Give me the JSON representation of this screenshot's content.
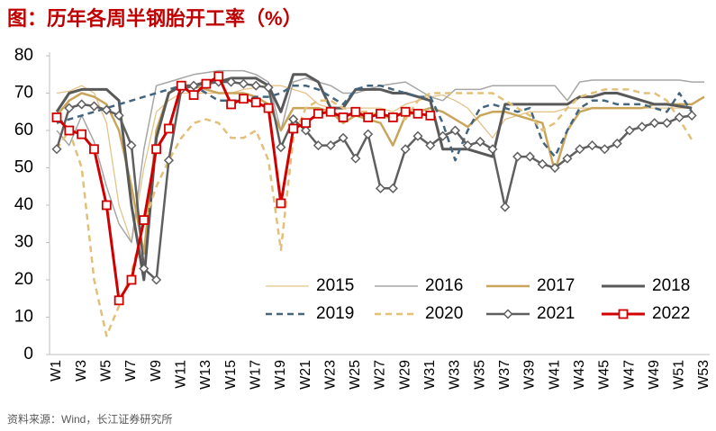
{
  "chart_data": {
    "type": "line",
    "title": "图：历年各周半钢胎开工率（%）",
    "source": "资料来源：Wind，长江证券研究所",
    "categories": [
      "W1",
      null,
      "W3",
      null,
      "W5",
      null,
      "W7",
      null,
      "W9",
      null,
      "W11",
      null,
      "W13",
      null,
      "W15",
      null,
      "W17",
      null,
      "W19",
      null,
      "W21",
      null,
      "W23",
      null,
      "W25",
      null,
      "W27",
      null,
      "W29",
      null,
      "W31",
      null,
      "W33",
      null,
      "W35",
      null,
      "W37",
      null,
      "W39",
      null,
      "W41",
      null,
      "W43",
      null,
      "W45",
      null,
      "W47",
      null,
      "W49",
      null,
      "W51",
      null,
      "W53"
    ],
    "ylim": [
      0,
      80
    ],
    "yticks": [
      0,
      10,
      20,
      30,
      40,
      50,
      60,
      70,
      80
    ],
    "grid": false,
    "legend": "lower right",
    "series": [
      {
        "name": "2015",
        "color": "#e6c387",
        "dashed": false,
        "marker": null,
        "values": [
          70,
          70.5,
          72,
          70,
          62,
          40,
          30,
          50,
          65,
          68,
          70,
          70,
          70,
          70,
          70,
          71,
          71.5,
          72,
          72,
          71,
          70,
          67,
          66,
          66,
          66,
          66,
          66,
          65,
          67,
          68,
          69,
          69.5,
          68,
          66,
          62,
          58,
          63,
          64,
          65,
          65,
          65,
          66,
          66,
          66,
          66,
          66,
          66,
          66,
          66,
          66,
          66,
          66,
          null
        ]
      },
      {
        "name": "2016",
        "color": "#a6a6a6",
        "dashed": false,
        "marker": null,
        "values": [
          60,
          56,
          64,
          57,
          45,
          35,
          30,
          55,
          72,
          73,
          74,
          75,
          75.5,
          76,
          76,
          76,
          75,
          73,
          60,
          73,
          74,
          73,
          72,
          70,
          70,
          71,
          72,
          72.5,
          73,
          71,
          69,
          68,
          71,
          71,
          71,
          72,
          72,
          72,
          72,
          72,
          72,
          68,
          73,
          73.5,
          73.5,
          73.5,
          73.5,
          73.5,
          73.5,
          73.5,
          73.5,
          73,
          73
        ]
      },
      {
        "name": "2017",
        "color": "#c9a55a",
        "dashed": false,
        "marker": null,
        "values": [
          64,
          68,
          70,
          69,
          67,
          60,
          45,
          27,
          60,
          70,
          72,
          72,
          71,
          70,
          70,
          70,
          69,
          67,
          60,
          66,
          66,
          66,
          65,
          62,
          64,
          63,
          62,
          56,
          64,
          65,
          66,
          65,
          63,
          61,
          64,
          65,
          65,
          64,
          63,
          62,
          49,
          60,
          65,
          66,
          66,
          66,
          66,
          66,
          67,
          67,
          67,
          67,
          69
        ]
      },
      {
        "name": "2018",
        "color": "#595959",
        "dashed": false,
        "marker": null,
        "values": [
          65,
          70,
          71,
          71,
          71,
          68,
          40,
          20,
          58,
          70,
          72,
          72,
          73,
          73,
          74,
          74,
          74,
          72,
          65,
          75,
          75,
          73,
          66,
          66,
          71,
          71,
          71,
          70,
          70,
          69,
          68,
          55,
          55,
          55,
          54,
          53,
          67,
          67,
          67,
          67,
          67,
          67,
          69,
          69,
          70,
          70,
          69,
          68,
          67,
          67,
          66.5,
          66,
          null
        ]
      },
      {
        "name": "2019",
        "color": "#44657f",
        "dashed": true,
        "marker": null,
        "values": [
          62,
          63,
          64,
          65,
          66,
          67,
          68,
          69,
          70,
          71,
          72,
          72,
          70,
          68,
          68,
          68,
          69,
          69,
          70,
          72,
          72,
          71,
          69,
          67,
          71,
          72,
          72,
          71,
          70,
          69,
          69,
          62,
          52,
          60,
          66,
          67,
          66,
          65,
          66,
          57,
          53,
          60,
          66,
          68,
          68,
          67,
          67,
          67,
          66,
          65,
          70,
          65,
          null
        ]
      },
      {
        "name": "2020",
        "color": "#e3c07a",
        "dashed": true,
        "marker": null,
        "values": [
          55,
          60,
          50,
          20,
          5,
          13,
          22,
          35,
          45,
          52,
          58,
          62,
          63,
          62,
          58,
          58,
          60,
          52,
          28,
          58,
          66,
          68,
          68,
          66,
          65,
          65,
          64,
          63,
          63,
          68,
          70,
          70,
          70,
          70,
          70,
          70,
          68,
          66,
          64,
          60,
          62,
          66,
          69,
          70,
          71,
          71,
          71,
          70,
          70,
          68,
          63,
          57.5,
          null
        ]
      },
      {
        "name": "2021",
        "color": "#5f5f5f",
        "dashed": false,
        "marker": "diamond",
        "values": [
          55,
          66,
          67,
          66.5,
          65.5,
          64,
          56,
          23,
          20,
          52,
          71,
          72,
          72.5,
          73,
          73,
          72.5,
          72,
          71.5,
          55.5,
          63,
          60,
          56,
          56,
          58,
          52.5,
          59,
          44.5,
          44.5,
          55,
          58.5,
          56,
          58.5,
          60,
          56,
          57,
          55,
          39.5,
          53,
          53,
          51,
          50,
          52.5,
          55,
          56,
          55,
          56.5,
          60,
          61,
          62,
          62,
          63.5,
          64,
          null
        ]
      },
      {
        "name": "2022",
        "color": "#d00000",
        "dashed": false,
        "marker": "square",
        "values": [
          63.5,
          60,
          59,
          55,
          40,
          14.5,
          20,
          36,
          55,
          60.5,
          72,
          69.5,
          72.5,
          74.5,
          67,
          68.5,
          67.5,
          66,
          40.5,
          60.5,
          62,
          64.5,
          65,
          63.5,
          65,
          63.5,
          64.5,
          63.5,
          65,
          64.5,
          64,
          null,
          null,
          null,
          null,
          null,
          null,
          null,
          null,
          null,
          null,
          null,
          null,
          null,
          null,
          null,
          null,
          null,
          null,
          null,
          null,
          null,
          null
        ]
      }
    ]
  }
}
